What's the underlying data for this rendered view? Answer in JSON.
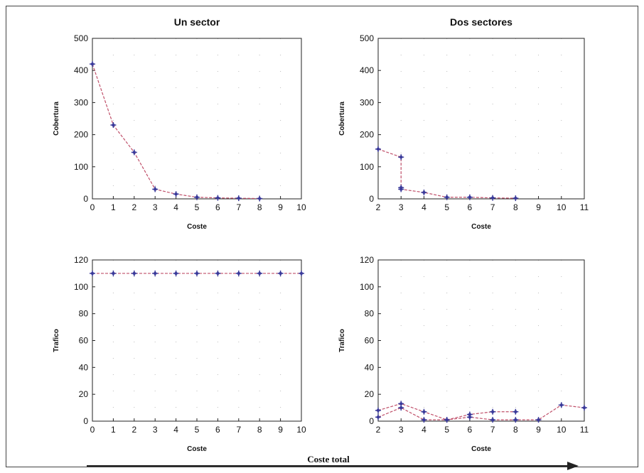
{
  "footer": {
    "label": "Coste total"
  },
  "colors": {
    "line": "#c0506a",
    "marker": "#3a3a9a",
    "axis": "#222222"
  },
  "chart_data": [
    {
      "type": "line",
      "title": "Un sector",
      "xlabel": "Coste",
      "ylabel": "Cobertura",
      "xlim": [
        0,
        10
      ],
      "ylim": [
        0,
        500
      ],
      "xticks": [
        0,
        1,
        2,
        3,
        4,
        5,
        6,
        7,
        8,
        9,
        10
      ],
      "yticks": [
        0,
        100,
        200,
        300,
        400,
        500
      ],
      "grid": "dotted",
      "series": [
        {
          "x": [
            0,
            1,
            2,
            3,
            4,
            5,
            6,
            7,
            8
          ],
          "y": [
            420,
            230,
            145,
            30,
            15,
            5,
            3,
            2,
            1
          ]
        }
      ]
    },
    {
      "type": "line",
      "title": "Dos sectores",
      "xlabel": "Coste",
      "ylabel": "Cobertura",
      "xlim": [
        2,
        11
      ],
      "ylim": [
        0,
        500
      ],
      "xticks": [
        2,
        3,
        4,
        5,
        6,
        7,
        8,
        9,
        10,
        11
      ],
      "yticks": [
        0,
        100,
        200,
        300,
        400,
        500
      ],
      "grid": "dotted",
      "series": [
        {
          "x": [
            2,
            3,
            3,
            3,
            4,
            5,
            6,
            7,
            8
          ],
          "y": [
            155,
            130,
            35,
            30,
            20,
            5,
            5,
            3,
            2
          ]
        }
      ]
    },
    {
      "type": "line",
      "title": "",
      "xlabel": "Coste",
      "ylabel": "Trafico",
      "xlim": [
        0,
        10
      ],
      "ylim": [
        0,
        120
      ],
      "xticks": [
        0,
        1,
        2,
        3,
        4,
        5,
        6,
        7,
        8,
        9,
        10
      ],
      "yticks": [
        0,
        20,
        40,
        60,
        80,
        100,
        120
      ],
      "grid": "dotted",
      "series": [
        {
          "x": [
            0,
            1,
            2,
            3,
            4,
            5,
            6,
            7,
            8,
            9,
            10
          ],
          "y": [
            110,
            110,
            110,
            110,
            110,
            110,
            110,
            110,
            110,
            110,
            110
          ]
        }
      ]
    },
    {
      "type": "line",
      "title": "",
      "xlabel": "Coste",
      "ylabel": "Trafico",
      "xlim": [
        2,
        11
      ],
      "ylim": [
        0,
        120
      ],
      "xticks": [
        2,
        3,
        4,
        5,
        6,
        7,
        8,
        9,
        10,
        11
      ],
      "yticks": [
        0,
        20,
        40,
        60,
        80,
        100,
        120
      ],
      "grid": "dotted",
      "series": [
        {
          "x": [
            2,
            3,
            4,
            5,
            6,
            7,
            8,
            9,
            10,
            11
          ],
          "y": [
            3,
            10,
            1,
            1,
            3,
            1,
            1,
            1,
            12,
            10
          ]
        },
        {
          "x": [
            2,
            3,
            4,
            5,
            6,
            7,
            8
          ],
          "y": [
            8,
            13,
            7,
            1,
            5,
            7,
            7
          ]
        }
      ]
    }
  ]
}
